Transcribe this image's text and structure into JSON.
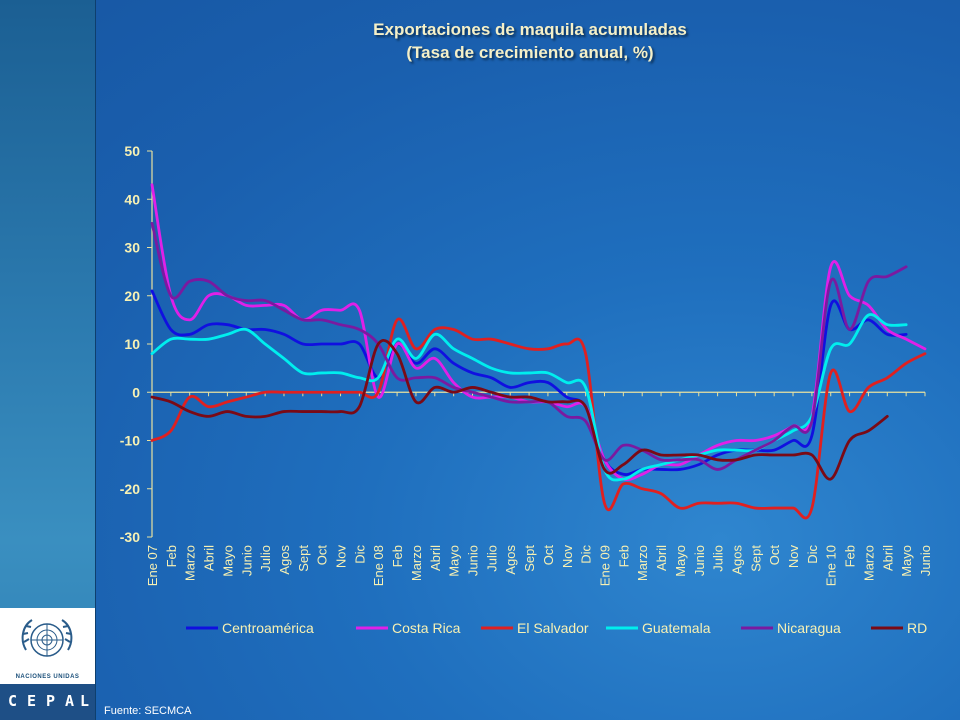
{
  "title_line1": "Exportaciones de maquila acumuladas",
  "title_line2": "(Tasa de crecimiento anual, %)",
  "source": "Fuente: SECMCA",
  "logo": {
    "un_text": "NACIONES UNIDAS",
    "cepal_letters": [
      "C",
      "E",
      "P",
      "A",
      "L"
    ]
  },
  "chart_data": {
    "type": "line",
    "title": "Exportaciones de maquila acumuladas (Tasa de crecimiento anual, %)",
    "ylim": [
      -30,
      50
    ],
    "yticks": [
      "50",
      "40",
      "30",
      "20",
      "10",
      "0",
      "-10",
      "-20",
      "-30"
    ],
    "grid": false,
    "legend_position": "bottom",
    "x": [
      "Ene 07",
      "Feb",
      "Marzo",
      "Abril",
      "Mayo",
      "Junio",
      "Julio",
      "Agos",
      "Sept",
      "Oct",
      "Nov",
      "Dic",
      "Ene 08",
      "Feb",
      "Marzo",
      "Abril",
      "Mayo",
      "Junio",
      "Julio",
      "Agos",
      "Sept",
      "Oct",
      "Nov",
      "Dic",
      "Ene 09",
      "Feb",
      "Marzo",
      "Abril",
      "Mayo",
      "Junio",
      "Julio",
      "Agos",
      "Sept",
      "Oct",
      "Nov",
      "Dic",
      "Ene 10",
      "Feb",
      "Marzo",
      "Abril",
      "Mayo",
      "Junio"
    ],
    "series": [
      {
        "name": "Centroamérica",
        "color": "#1010e0",
        "values": [
          21,
          13,
          12,
          14,
          14,
          13,
          13,
          12,
          10,
          10,
          10,
          10,
          3,
          10,
          6,
          9,
          6,
          4,
          3,
          1,
          2,
          2,
          -1,
          -3,
          -14,
          -17,
          -16,
          -16,
          -16,
          -15,
          -13,
          -12,
          -12,
          -12,
          -10,
          -9,
          18,
          13,
          15,
          12,
          12,
          null
        ]
      },
      {
        "name": "Costa Rica",
        "color": "#e020e8",
        "values": [
          43,
          20,
          15,
          20,
          20,
          18,
          18,
          18,
          15,
          17,
          17,
          17,
          -1,
          10,
          5,
          7,
          2,
          -1,
          -1,
          -1,
          -2,
          -2,
          -3,
          -3,
          -14,
          -18,
          -17,
          -15,
          -15,
          -13,
          -11,
          -10,
          -10,
          -9,
          -7,
          -5,
          26,
          20,
          18,
          13,
          11,
          9
        ]
      },
      {
        "name": "El Salvador",
        "color": "#e02020",
        "values": [
          -10,
          -8,
          -1,
          -3,
          -2,
          -1,
          0,
          0,
          0,
          0,
          0,
          0,
          0,
          15,
          9,
          13,
          13,
          11,
          11,
          10,
          9,
          9,
          10,
          8,
          -23,
          -19,
          -20,
          -21,
          -24,
          -23,
          -23,
          -23,
          -24,
          -24,
          -24,
          -24,
          4,
          -4,
          1,
          3,
          6,
          8
        ]
      },
      {
        "name": "Guatemala",
        "color": "#00eeee",
        "values": [
          8,
          11,
          11,
          11,
          12,
          13,
          10,
          7,
          4,
          4,
          4,
          3,
          3,
          11,
          7,
          12,
          9,
          7,
          5,
          4,
          4,
          4,
          2,
          1,
          -16,
          -18,
          -16,
          -15,
          -14,
          -13,
          -12,
          -12,
          -12,
          -10,
          -8,
          -5,
          9,
          10,
          16,
          14,
          14,
          null
        ]
      },
      {
        "name": "Nicaragua",
        "color": "#7a1aa0",
        "values": [
          35,
          20,
          23,
          23,
          20,
          19,
          19,
          17,
          15,
          15,
          14,
          13,
          10,
          3,
          3,
          3,
          1,
          0,
          -1,
          -2,
          -2,
          -2,
          -5,
          -6,
          -14,
          -11,
          -12,
          -14,
          -14,
          -14,
          -16,
          -14,
          -12,
          -10,
          -7,
          -6,
          23,
          13,
          23,
          24,
          26,
          null
        ]
      },
      {
        "name": "RD",
        "color": "#7a0a16",
        "values": [
          -1,
          -2,
          -4,
          -5,
          -4,
          -5,
          -5,
          -4,
          -4,
          -4,
          -4,
          -3,
          10,
          8,
          -2,
          1,
          0,
          1,
          0,
          -1,
          -1,
          -2,
          -2,
          -3,
          -16,
          -15,
          -12,
          -13,
          -13,
          -13,
          -14,
          -14,
          -13,
          -13,
          -13,
          -13,
          -18,
          -10,
          -8,
          -5,
          null,
          null
        ]
      }
    ]
  }
}
